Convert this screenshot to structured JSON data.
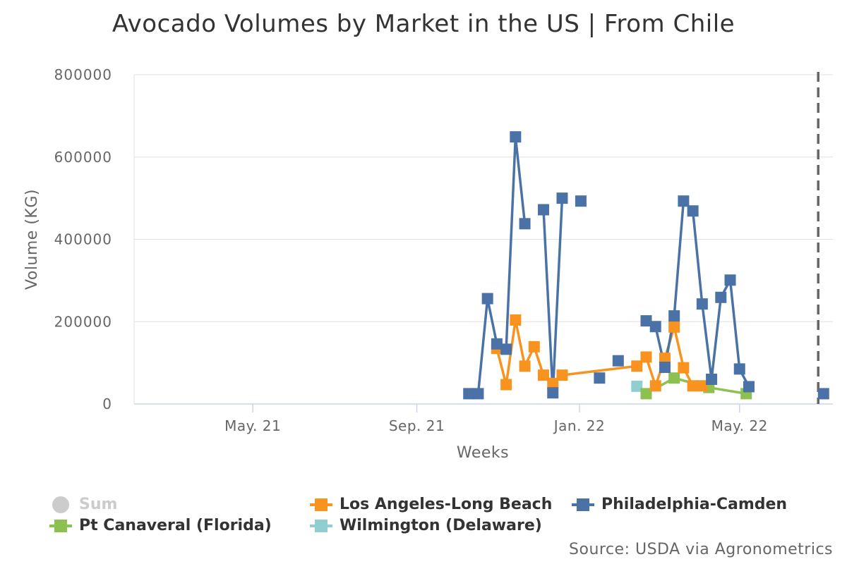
{
  "colors": {
    "philadelphia": "#4a72a6",
    "los_angeles": "#f7931e",
    "pt_canaveral": "#8cc152",
    "wilmington": "#8fcfcf",
    "sum": "#cccccc",
    "grid": "#e0e0e0",
    "axis": "#ccd6eb",
    "text": "#666666"
  },
  "chart_data": {
    "type": "line",
    "title": "Avocado Volumes by Market in the US | From Chile",
    "xlabel": "Weeks",
    "ylabel": "Volume (KG)",
    "source": "Source: USDA via Agronometrics",
    "ylim": [
      0,
      800000
    ],
    "yticks": [
      "0",
      "200000",
      "400000",
      "600000",
      "800000"
    ],
    "xlim": [
      "2021-02-01",
      "2022-07-10"
    ],
    "xticks": [
      {
        "date": "2021-05-01",
        "label": "May. 21"
      },
      {
        "date": "2021-09-01",
        "label": "Sep. 21"
      },
      {
        "date": "2022-01-01",
        "label": "Jan. 22"
      },
      {
        "date": "2022-05-01",
        "label": "May. 22"
      }
    ],
    "reference_line": {
      "date": "2022-06-29",
      "style": "dashed"
    },
    "grid": true,
    "legend_position": "bottom",
    "series": [
      {
        "name": "Sum",
        "visible": false,
        "points": []
      },
      {
        "name": "Los Angeles-Long Beach",
        "color_key": "los_angeles",
        "points": [
          [
            "2021-10-31",
            135000
          ],
          [
            "2021-11-07",
            47000
          ],
          [
            "2021-11-14",
            204000
          ],
          [
            "2021-11-21",
            92000
          ],
          [
            "2021-11-28",
            139000
          ],
          [
            "2021-12-05",
            70000
          ],
          [
            "2021-12-12",
            50000
          ],
          [
            "2021-12-19",
            70000
          ],
          [
            "2022-02-13",
            92000
          ],
          [
            "2022-02-20",
            114000
          ],
          [
            "2022-02-27",
            44000
          ],
          [
            "2022-03-06",
            111000
          ],
          [
            "2022-03-13",
            187000
          ],
          [
            "2022-03-20",
            88000
          ],
          [
            "2022-03-27",
            44000
          ],
          [
            "2022-04-03",
            44000
          ]
        ]
      },
      {
        "name": "Philadelphia-Camden",
        "color_key": "philadelphia",
        "points": [
          [
            "2021-10-10",
            25000
          ],
          [
            "2021-10-17",
            25000
          ],
          [
            "2021-10-24",
            256000
          ],
          [
            "2021-10-31",
            146000
          ],
          [
            "2021-11-07",
            133000
          ],
          [
            "2021-11-14",
            649000
          ],
          [
            "2021-11-21",
            438000
          ],
          null,
          [
            "2021-12-05",
            472000
          ],
          [
            "2021-12-12",
            27000
          ],
          [
            "2021-12-19",
            500000
          ],
          null,
          [
            "2022-01-02",
            493000
          ],
          null,
          [
            "2022-01-16",
            63000
          ],
          null,
          [
            "2022-01-30",
            105000
          ],
          null,
          [
            "2022-02-20",
            202000
          ],
          [
            "2022-02-27",
            188000
          ],
          [
            "2022-03-06",
            89000
          ],
          [
            "2022-03-13",
            214000
          ],
          [
            "2022-03-20",
            493000
          ],
          [
            "2022-03-27",
            469000
          ],
          [
            "2022-04-03",
            243000
          ],
          [
            "2022-04-10",
            60000
          ],
          [
            "2022-04-17",
            259000
          ],
          [
            "2022-04-24",
            301000
          ],
          [
            "2022-05-01",
            85000
          ],
          [
            "2022-05-08",
            42000
          ],
          null,
          [
            "2022-07-03",
            25000
          ]
        ]
      },
      {
        "name": "Pt Canaveral (Florida)",
        "color_key": "pt_canaveral",
        "points": [
          [
            "2022-02-20",
            25000
          ],
          [
            "2022-03-13",
            63000
          ],
          [
            "2022-04-08",
            40000
          ],
          [
            "2022-05-06",
            25000
          ]
        ]
      },
      {
        "name": "Wilmington (Delaware)",
        "color_key": "wilmington",
        "points": [
          [
            "2022-02-13",
            43000
          ]
        ]
      }
    ]
  },
  "legend": [
    {
      "label": "Sum",
      "marker": "circle",
      "color_key": "sum",
      "hidden": true
    },
    {
      "label": "Los Angeles-Long Beach",
      "marker": "square",
      "color_key": "los_angeles"
    },
    {
      "label": "Philadelphia-Camden",
      "marker": "square",
      "color_key": "philadelphia"
    },
    {
      "label": "Pt Canaveral (Florida)",
      "marker": "square",
      "color_key": "pt_canaveral"
    },
    {
      "label": "Wilmington (Delaware)",
      "marker": "square",
      "color_key": "wilmington"
    }
  ]
}
